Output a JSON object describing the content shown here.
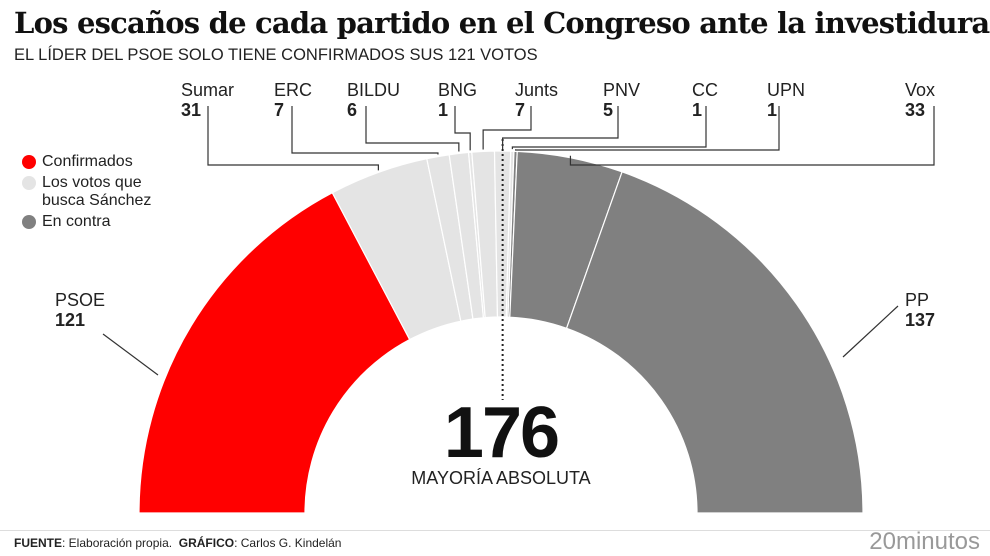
{
  "title": "Los escaños de cada partido en el Congreso ante la investidura de Sánchez",
  "subtitle": "EL LÍDER DEL PSOE SOLO TIENE CONFIRMADOS SUS 121 VOTOS",
  "chart_data": {
    "type": "pie",
    "shape": "semicircle-donut",
    "total_seats": 350,
    "parties": [
      {
        "name": "PSOE",
        "seats": 121,
        "group": "Confirmados"
      },
      {
        "name": "Sumar",
        "seats": 31,
        "group": "Los votos que busca Sánchez"
      },
      {
        "name": "ERC",
        "seats": 7,
        "group": "Los votos que busca Sánchez"
      },
      {
        "name": "BILDU",
        "seats": 6,
        "group": "Los votos que busca Sánchez"
      },
      {
        "name": "BNG",
        "seats": 1,
        "group": "Los votos que busca Sánchez"
      },
      {
        "name": "Junts",
        "seats": 7,
        "group": "Los votos que busca Sánchez"
      },
      {
        "name": "PNV",
        "seats": 5,
        "group": "Los votos que busca Sánchez"
      },
      {
        "name": "CC",
        "seats": 1,
        "group": "Los votos que busca Sánchez"
      },
      {
        "name": "UPN",
        "seats": 1,
        "group": "En contra"
      },
      {
        "name": "Vox",
        "seats": 33,
        "group": "En contra"
      },
      {
        "name": "PP",
        "seats": 137,
        "group": "En contra"
      }
    ],
    "legend": [
      {
        "label": "Confirmados",
        "color": "#ff0000"
      },
      {
        "label": "Los votos que busca Sánchez",
        "color": "#e4e4e4"
      },
      {
        "label": "En contra",
        "color": "#808080"
      }
    ],
    "majority": {
      "value": "176",
      "label": "MAYORÍA ABSOLUTA"
    }
  },
  "footer": {
    "source_label": "FUENTE",
    "source": "Elaboración propia.",
    "graphic_label": "GRÁFICO",
    "graphic": "Carlos G. Kindelán",
    "logo": "20minutos"
  }
}
